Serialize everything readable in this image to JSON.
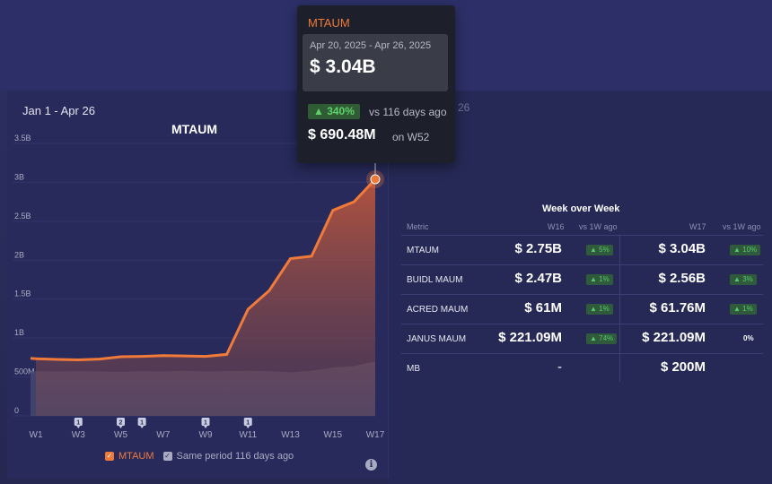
{
  "chart_panel": {
    "date_range": "Jan 1 - Apr 26",
    "title": "MTAUM",
    "behind_text": "26"
  },
  "chart_data": {
    "type": "area",
    "title": "MTAUM",
    "x_ticks": [
      "W1",
      "W3",
      "W5",
      "W7",
      "W9",
      "W11",
      "W13",
      "W15",
      "W17"
    ],
    "y_ticks": [
      "0",
      "500M",
      "1B",
      "1.5B",
      "2B",
      "2.5B",
      "3B",
      "3.5B"
    ],
    "ylim": [
      0,
      3500
    ],
    "y_unit": "M",
    "weeks": [
      "W52",
      "W1",
      "W2",
      "W3",
      "W4",
      "W5",
      "W6",
      "W7",
      "W8",
      "W9",
      "W10",
      "W11",
      "W12",
      "W13",
      "W14",
      "W15",
      "W16",
      "W17"
    ],
    "series": [
      {
        "name": "MTAUM",
        "color": "#f07a3a",
        "values": [
          740,
          735,
          725,
          720,
          730,
          760,
          765,
          775,
          770,
          765,
          790,
          1370,
          1610,
          2020,
          2050,
          2640,
          2750,
          3040
        ]
      },
      {
        "name": "Same period 116 days ago",
        "color": "#6d6f95",
        "values": [
          560,
          575,
          570,
          575,
          570,
          565,
          575,
          570,
          580,
          570,
          575,
          580,
          575,
          560,
          580,
          620,
          640,
          700
        ]
      }
    ],
    "annotations": [
      {
        "week": "W3",
        "label": "1"
      },
      {
        "week": "W5",
        "label": "2"
      },
      {
        "week": "W6",
        "label": "1"
      },
      {
        "week": "W9",
        "label": "1"
      },
      {
        "week": "W11",
        "label": "1"
      }
    ],
    "legend": [
      "MTAUM",
      "Same period 116 days ago"
    ],
    "legend_position": "bottom"
  },
  "tooltip": {
    "metric": "MTAUM",
    "date_range": "Apr 20, 2025 - Apr 26, 2025",
    "value": "$ 3.04B",
    "change": "▲ 340%",
    "vs_text": "vs 116 days ago",
    "prev_value": "$ 690.48M",
    "prev_on": "on W52"
  },
  "wow_table": {
    "title": "Week over Week",
    "headers": {
      "metric": "Metric",
      "w16": "W16",
      "vs1": "vs 1W ago",
      "w17": "W17",
      "vs2": "vs 1W ago"
    },
    "rows": [
      {
        "metric": "MTAUM",
        "w16": "$ 2.75B",
        "w16_change": "▲ 5%",
        "w17": "$ 3.04B",
        "w17_change": "▲ 10%"
      },
      {
        "metric": "BUIDL MAUM",
        "w16": "$ 2.47B",
        "w16_change": "▲ 1%",
        "w17": "$ 2.56B",
        "w17_change": "▲ 3%"
      },
      {
        "metric": "ACRED MAUM",
        "w16": "$ 61M",
        "w16_change": "▲ 1%",
        "w17": "$ 61.76M",
        "w17_change": "▲ 1%"
      },
      {
        "metric": "JANUS MAUM",
        "w16": "$ 221.09M",
        "w16_change": "▲ 74%",
        "w17": "$ 221.09M",
        "w17_change": "0%"
      },
      {
        "metric": "MB",
        "w16": "-",
        "w16_change": "",
        "w17": "$ 200M",
        "w17_change": ""
      }
    ]
  },
  "colors": {
    "accent": "#f07a3a",
    "positive": "#58c96a",
    "background": "#2a2c5c"
  }
}
